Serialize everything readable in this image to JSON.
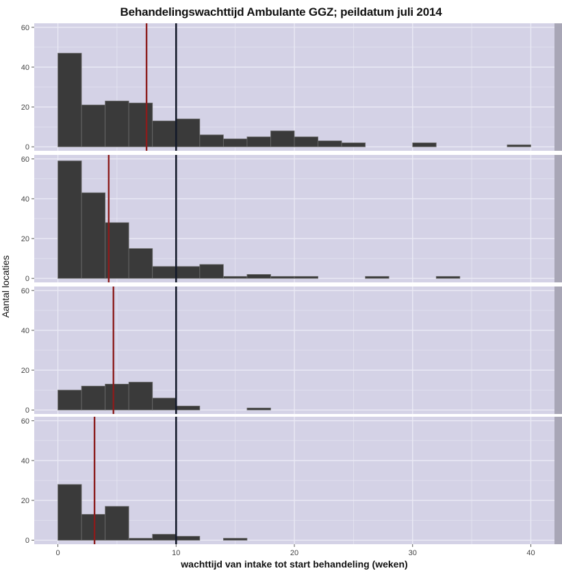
{
  "chart_data": {
    "type": "bar",
    "title": "Behandelingswachttijd Ambulante GGZ; peildatum juli 2014",
    "xlabel": "wachttijd van intake tot start behandeling (weken)",
    "ylabel": "Aantal locaties",
    "xlim": [
      -2,
      42
    ],
    "ylim": [
      -2,
      62
    ],
    "x_ticks": [
      0,
      10,
      20,
      30,
      40
    ],
    "y_ticks": [
      0,
      20,
      40,
      60
    ],
    "bin_width": 2,
    "grid": true,
    "colors": {
      "panel_bg": "#d4d2e6",
      "grid": "#ebebf5",
      "bar_fill": "#3a3a3a",
      "bar_stroke": "#6e6e6e",
      "mean_line": "#8b1c1c",
      "norm_line": "#141a2a",
      "strip_bg": "#a8a6b6"
    },
    "reference_line_x": 10,
    "panels": [
      {
        "strip": "",
        "mean": 7.5,
        "bins": [
          {
            "x": 0,
            "y": 47
          },
          {
            "x": 2,
            "y": 21
          },
          {
            "x": 4,
            "y": 23
          },
          {
            "x": 6,
            "y": 22
          },
          {
            "x": 8,
            "y": 13
          },
          {
            "x": 10,
            "y": 14
          },
          {
            "x": 12,
            "y": 6
          },
          {
            "x": 14,
            "y": 4
          },
          {
            "x": 16,
            "y": 5
          },
          {
            "x": 18,
            "y": 8
          },
          {
            "x": 20,
            "y": 5
          },
          {
            "x": 22,
            "y": 3
          },
          {
            "x": 24,
            "y": 2
          },
          {
            "x": 30,
            "y": 2
          },
          {
            "x": 38,
            "y": 1
          }
        ]
      },
      {
        "strip": "",
        "mean": 4.3,
        "bins": [
          {
            "x": 0,
            "y": 59
          },
          {
            "x": 2,
            "y": 43
          },
          {
            "x": 4,
            "y": 28
          },
          {
            "x": 6,
            "y": 15
          },
          {
            "x": 8,
            "y": 6
          },
          {
            "x": 10,
            "y": 6
          },
          {
            "x": 12,
            "y": 7
          },
          {
            "x": 14,
            "y": 1
          },
          {
            "x": 16,
            "y": 2
          },
          {
            "x": 18,
            "y": 1
          },
          {
            "x": 20,
            "y": 1
          },
          {
            "x": 26,
            "y": 1
          },
          {
            "x": 32,
            "y": 1
          }
        ]
      },
      {
        "strip": "",
        "mean": 4.7,
        "bins": [
          {
            "x": 0,
            "y": 10
          },
          {
            "x": 2,
            "y": 12
          },
          {
            "x": 4,
            "y": 13
          },
          {
            "x": 6,
            "y": 14
          },
          {
            "x": 8,
            "y": 6
          },
          {
            "x": 10,
            "y": 2
          },
          {
            "x": 16,
            "y": 1
          }
        ]
      },
      {
        "strip": "",
        "mean": 3.1,
        "bins": [
          {
            "x": 0,
            "y": 28
          },
          {
            "x": 2,
            "y": 13
          },
          {
            "x": 4,
            "y": 17
          },
          {
            "x": 6,
            "y": 1
          },
          {
            "x": 8,
            "y": 3
          },
          {
            "x": 10,
            "y": 2
          },
          {
            "x": 14,
            "y": 1
          }
        ]
      }
    ]
  }
}
